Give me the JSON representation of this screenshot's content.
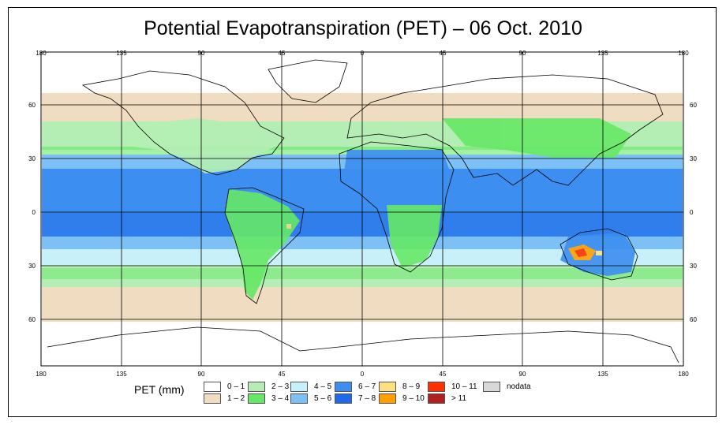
{
  "title": "Potential Evapotranspiration (PET) – 06 Oct. 2010",
  "longitude_ticks_top": [
    "180",
    "135",
    "90",
    "45",
    "0",
    "45",
    "90",
    "135",
    "180"
  ],
  "longitude_ticks_bottom": [
    "180",
    "135",
    "90",
    "45",
    "0",
    "45",
    "90",
    "135",
    "180"
  ],
  "latitude_ticks_left": [
    "60",
    "30",
    "0",
    "30",
    "60"
  ],
  "latitude_ticks_right": [
    "60",
    "30",
    "0",
    "30",
    "60"
  ],
  "legend": {
    "title": "PET (mm)",
    "classes": [
      {
        "label": "0 – 1",
        "color": "#ffffff"
      },
      {
        "label": "1 – 2",
        "color": "#f0dcc0"
      },
      {
        "label": "2 – 3",
        "color": "#b4eeb4"
      },
      {
        "label": "3 – 4",
        "color": "#66e866"
      },
      {
        "label": "4 – 5",
        "color": "#c8f0fa"
      },
      {
        "label": "5 – 6",
        "color": "#7dc0f5"
      },
      {
        "label": "6 – 7",
        "color": "#3c8ef0"
      },
      {
        "label": "7 – 8",
        "color": "#1f6ae6"
      },
      {
        "label": "8 – 9",
        "color": "#ffe080"
      },
      {
        "label": "9 – 10",
        "color": "#ffa000"
      },
      {
        "label": "10 – 11",
        "color": "#ff3000"
      },
      {
        "label": "> 11",
        "color": "#b02020"
      },
      {
        "label": "nodata",
        "color": "#d8d8d8"
      }
    ]
  }
}
